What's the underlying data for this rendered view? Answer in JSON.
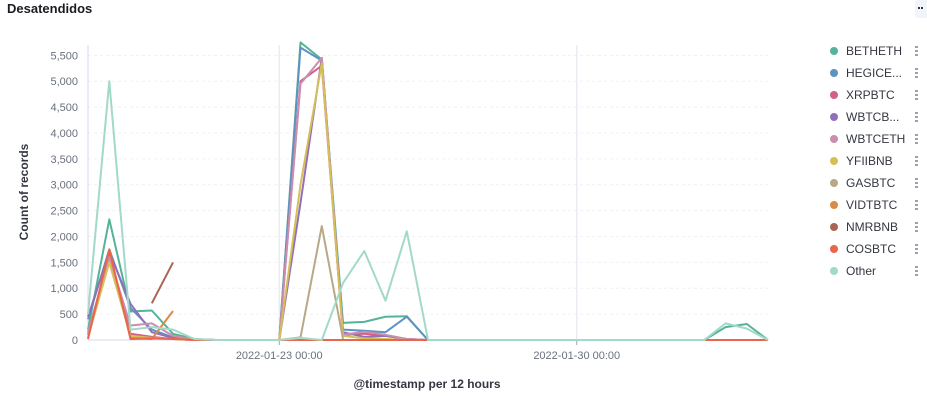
{
  "panel": {
    "title": "Desatendidos"
  },
  "chart_data": {
    "type": "line",
    "title": "Desatendidos",
    "xlabel": "@timestamp per 12 hours",
    "ylabel": "Count of records",
    "ylim": [
      0,
      5700
    ],
    "yticks": [
      0,
      500,
      1000,
      1500,
      2000,
      2500,
      3000,
      3500,
      4000,
      4500,
      5000,
      5500
    ],
    "ytick_labels": [
      "0",
      "500",
      "1,000",
      "1,500",
      "2,000",
      "2,500",
      "3,000",
      "3,500",
      "4,000",
      "4,500",
      "5,000",
      "5,500"
    ],
    "xlim": [
      "2022-01-18 12:00",
      "2022-02-03 12:00"
    ],
    "xtick_labels": [
      "2022-01-23 00:00",
      "2022-01-30 00:00"
    ],
    "grid": true,
    "legend_position": "right",
    "x": [
      "2022-01-18 12:00",
      "2022-01-19 00:00",
      "2022-01-19 12:00",
      "2022-01-20 00:00",
      "2022-01-20 12:00",
      "2022-01-21 00:00",
      "2022-01-21 12:00",
      "2022-01-22 00:00",
      "2022-01-22 12:00",
      "2022-01-23 00:00",
      "2022-01-23 12:00",
      "2022-01-24 00:00",
      "2022-01-24 12:00",
      "2022-01-25 00:00",
      "2022-01-25 12:00",
      "2022-01-26 00:00",
      "2022-01-26 12:00",
      "2022-01-27 00:00",
      "2022-01-27 12:00",
      "2022-01-28 00:00",
      "2022-01-28 12:00",
      "2022-01-29 00:00",
      "2022-01-29 12:00",
      "2022-01-30 00:00",
      "2022-01-30 12:00",
      "2022-01-31 00:00",
      "2022-01-31 12:00",
      "2022-02-01 00:00",
      "2022-02-01 12:00",
      "2022-02-02 00:00",
      "2022-02-02 12:00",
      "2022-02-03 00:00",
      "2022-02-03 12:00"
    ],
    "series": [
      {
        "name": "BETHETH",
        "color": "#54b399",
        "values": [
          200,
          2330,
          550,
          570,
          120,
          20,
          0,
          0,
          0,
          0,
          5750,
          5420,
          330,
          350,
          450,
          460,
          0,
          0,
          0,
          0,
          0,
          0,
          0,
          0,
          0,
          0,
          0,
          0,
          0,
          0,
          250,
          310,
          0
        ]
      },
      {
        "name": "HEGICE...",
        "color": "#6092c0",
        "values": [
          400,
          1750,
          620,
          200,
          50,
          10,
          0,
          0,
          0,
          0,
          5650,
          5400,
          200,
          180,
          150,
          450,
          0,
          0,
          0,
          0,
          0,
          0,
          0,
          0,
          0,
          0,
          0,
          0,
          0,
          0,
          0,
          0,
          0
        ]
      },
      {
        "name": "XRPBTC",
        "color": "#d36086",
        "values": [
          100,
          1650,
          120,
          60,
          20,
          0,
          0,
          0,
          0,
          0,
          5000,
          5300,
          100,
          120,
          80,
          20,
          0,
          0,
          0,
          0,
          0,
          0,
          0,
          0,
          0,
          0,
          0,
          0,
          0,
          0,
          0,
          0,
          0
        ]
      },
      {
        "name": "WBTCB...",
        "color": "#9170b8",
        "values": [
          450,
          1700,
          700,
          150,
          40,
          10,
          0,
          0,
          0,
          0,
          2650,
          5450,
          150,
          60,
          80,
          20,
          0,
          0,
          0,
          0,
          0,
          0,
          0,
          0,
          0,
          0,
          0,
          0,
          0,
          0,
          0,
          0,
          0
        ]
      },
      {
        "name": "WBTCETH",
        "color": "#ca8eae",
        "values": [
          150,
          1600,
          280,
          320,
          80,
          10,
          0,
          0,
          0,
          0,
          4950,
          5450,
          100,
          160,
          100,
          20,
          0,
          0,
          0,
          0,
          0,
          0,
          0,
          0,
          0,
          0,
          0,
          0,
          0,
          0,
          0,
          0,
          0
        ]
      },
      {
        "name": "YFIIBNB",
        "color": "#d6bf57",
        "values": [
          50,
          1500,
          80,
          40,
          20,
          0,
          0,
          0,
          0,
          0,
          3000,
          5350,
          80,
          30,
          20,
          0,
          0,
          0,
          0,
          0,
          0,
          0,
          0,
          0,
          0,
          0,
          0,
          0,
          0,
          0,
          0,
          0,
          0
        ]
      },
      {
        "name": "GASBTC",
        "color": "#b9a888",
        "values": [
          null,
          null,
          null,
          null,
          null,
          null,
          null,
          null,
          null,
          0,
          50,
          2200,
          20,
          null,
          null,
          null,
          null,
          null,
          null,
          null,
          null,
          null,
          null,
          null,
          null,
          null,
          null,
          null,
          null,
          null,
          null,
          null,
          null
        ]
      },
      {
        "name": "VIDTBTC",
        "color": "#da8b45",
        "values": [
          null,
          null,
          40,
          20,
          560,
          null,
          null,
          null,
          null,
          null,
          null,
          null,
          null,
          null,
          null,
          null,
          null,
          null,
          null,
          null,
          null,
          null,
          null,
          null,
          null,
          null,
          null,
          null,
          null,
          null,
          null,
          null,
          null
        ]
      },
      {
        "name": "NMRBNB",
        "color": "#aa6556",
        "values": [
          null,
          null,
          null,
          710,
          1500,
          null,
          null,
          null,
          null,
          null,
          null,
          null,
          null,
          null,
          null,
          null,
          null,
          null,
          null,
          null,
          null,
          null,
          null,
          null,
          null,
          null,
          null,
          null,
          null,
          null,
          null,
          null,
          null
        ]
      },
      {
        "name": "COSBTC",
        "color": "#e7664c",
        "values": [
          20,
          1750,
          20,
          30,
          20,
          0,
          0,
          0,
          0,
          0,
          0,
          0,
          0,
          0,
          0,
          0,
          0,
          0,
          0,
          0,
          0,
          0,
          0,
          0,
          0,
          0,
          0,
          0,
          0,
          0,
          0,
          0,
          0
        ]
      },
      {
        "name": "Other",
        "color": "#a2d9c8",
        "values": [
          500,
          5000,
          200,
          250,
          200,
          20,
          0,
          0,
          0,
          0,
          40,
          0,
          1100,
          1720,
          760,
          2100,
          0,
          0,
          0,
          0,
          0,
          0,
          0,
          0,
          0,
          0,
          0,
          0,
          0,
          0,
          320,
          220,
          0
        ]
      }
    ]
  }
}
